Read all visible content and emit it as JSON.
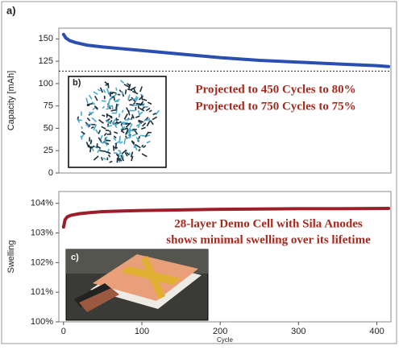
{
  "chart_data": [
    {
      "type": "line",
      "panel_label": "a)",
      "ylabel": "Capacity [mAh]",
      "x": [
        0,
        3,
        8,
        15,
        30,
        50,
        75,
        100,
        150,
        200,
        250,
        300,
        350,
        400,
        415
      ],
      "values": [
        155,
        151,
        148,
        146,
        143,
        141,
        139,
        137,
        133,
        129,
        126,
        124,
        122,
        120,
        119
      ],
      "color": "#2b4fb0",
      "line_width": 4,
      "reference_y": 114,
      "annotations": [
        "Projected to 450 Cycles to 80%",
        "Projected to 750 Cycles to 75%"
      ],
      "annotation_color": "#a52a1e",
      "xlim": [
        -6,
        418
      ],
      "ylim": [
        0,
        162
      ],
      "yticks": [
        0,
        25,
        50,
        75,
        100,
        125,
        150
      ],
      "grid": false
    },
    {
      "type": "line",
      "ylabel": "Swelling",
      "x": [
        0,
        2,
        5,
        10,
        20,
        35,
        50,
        75,
        100,
        150,
        200,
        250,
        300,
        350,
        415
      ],
      "values": [
        103.2,
        103.45,
        103.55,
        103.6,
        103.65,
        103.69,
        103.72,
        103.74,
        103.76,
        103.78,
        103.8,
        103.81,
        103.82,
        103.82,
        103.83
      ],
      "color": "#9b1f2a",
      "line_width": 4,
      "annotations": [
        "28-layer Demo Cell with Sila Anodes",
        "shows minimal swelling over its lifetime"
      ],
      "annotation_color": "#a52a1e",
      "xlabel": "Cycle",
      "xlim": [
        -6,
        418
      ],
      "xticks": [
        0,
        100,
        200,
        300,
        400
      ],
      "ylim": [
        100,
        104.4
      ],
      "yticks": [
        {
          "value": 100,
          "label": "100%"
        },
        {
          "value": 101,
          "label": "101%"
        },
        {
          "value": 102,
          "label": "102%"
        },
        {
          "value": 103,
          "label": "103%"
        },
        {
          "value": 104,
          "label": "104%"
        }
      ],
      "grid": false
    }
  ],
  "insets": [
    {
      "label": "b)"
    },
    {
      "label": "c)"
    }
  ]
}
